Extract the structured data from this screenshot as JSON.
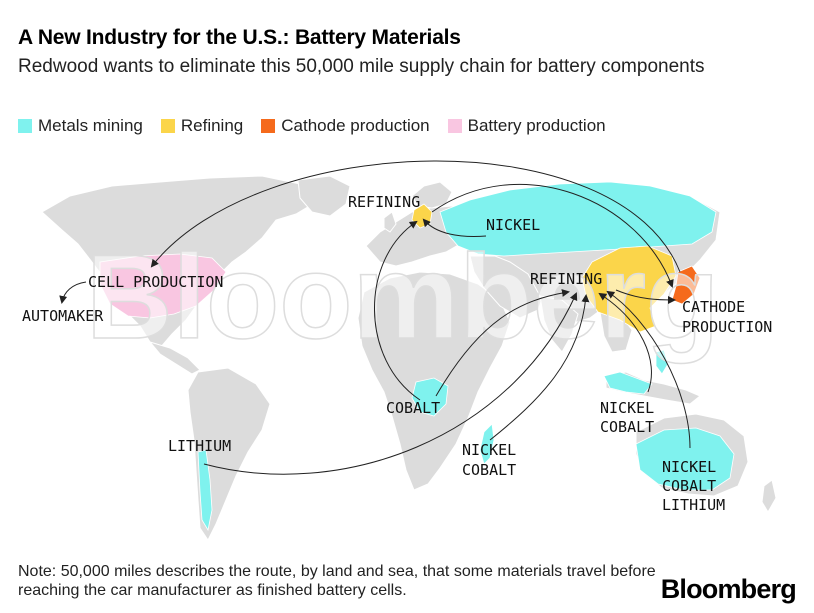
{
  "title": "A New Industry for the U.S.: Battery Materials",
  "subtitle": "Redwood wants to eliminate this 50,000 mile supply chain for battery components",
  "legend": [
    {
      "label": "Metals mining",
      "color": "#7ff2ee"
    },
    {
      "label": "Refining",
      "color": "#fbd54a"
    },
    {
      "label": "Cathode production",
      "color": "#f56a1c"
    },
    {
      "label": "Battery production",
      "color": "#f9c6e1"
    }
  ],
  "colors": {
    "land": "#dcdcdc",
    "arrow": "#222222"
  },
  "map": {
    "labels": {
      "refining_europe": "REFINING",
      "nickel_russia": "NICKEL",
      "cell_production": "CELL PRODUCTION",
      "automaker": "AUTOMAKER",
      "refining_china": "REFINING",
      "cathode_line1": "CATHODE",
      "cathode_line2": "PRODUCTION",
      "cobalt_congo": "COBALT",
      "lithium_chile": "LITHIUM",
      "nickel_madagascar": "NICKEL",
      "cobalt_madagascar": "COBALT",
      "nickel_indonesia": "NICKEL",
      "cobalt_indonesia": "COBALT",
      "nickel_australia": "NICKEL",
      "cobalt_australia": "COBALT",
      "lithium_australia": "LITHIUM"
    },
    "watermark": "Bloomberg"
  },
  "note": "Note: 50,000 miles describes the route, by land and sea, that some materials travel before reaching the car manufacturer as finished battery cells.",
  "logo": "Bloomberg"
}
